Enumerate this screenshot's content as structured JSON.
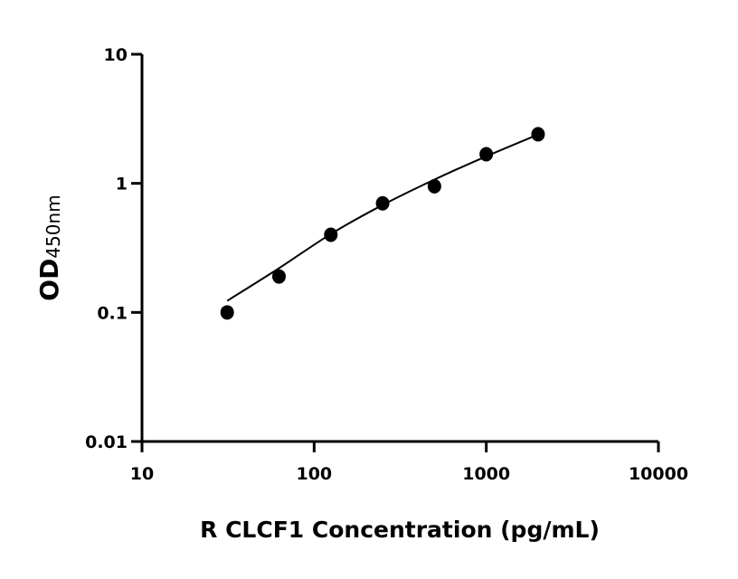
{
  "chart_data": {
    "type": "scatter",
    "title": "",
    "xlabel": "R CLCF1 Concentration (pg/mL)",
    "ylabel_main": "OD",
    "ylabel_sub": "450nm",
    "xscale": "log",
    "yscale": "log",
    "xlim": [
      10,
      10000
    ],
    "ylim": [
      0.01,
      10
    ],
    "xticks": [
      10,
      100,
      1000,
      10000
    ],
    "xtick_labels": [
      "10",
      "100",
      "1000",
      "10000"
    ],
    "yticks": [
      0.01,
      0.1,
      1,
      10
    ],
    "ytick_labels": [
      "0.01",
      "0.1",
      "1",
      "10"
    ],
    "grid": false,
    "colors": {
      "points": "#000000",
      "curve": "#000000"
    },
    "points": {
      "x": [
        31.25,
        62.5,
        125,
        250,
        500,
        1000,
        2000
      ],
      "y": [
        0.1,
        0.19,
        0.4,
        0.7,
        0.95,
        1.68,
        2.4
      ]
    },
    "fit_curve": {
      "x": [
        31.25,
        62.5,
        125,
        250,
        500,
        1000,
        2000
      ],
      "y": [
        0.123,
        0.22,
        0.405,
        0.68,
        1.07,
        1.62,
        2.39
      ]
    }
  }
}
